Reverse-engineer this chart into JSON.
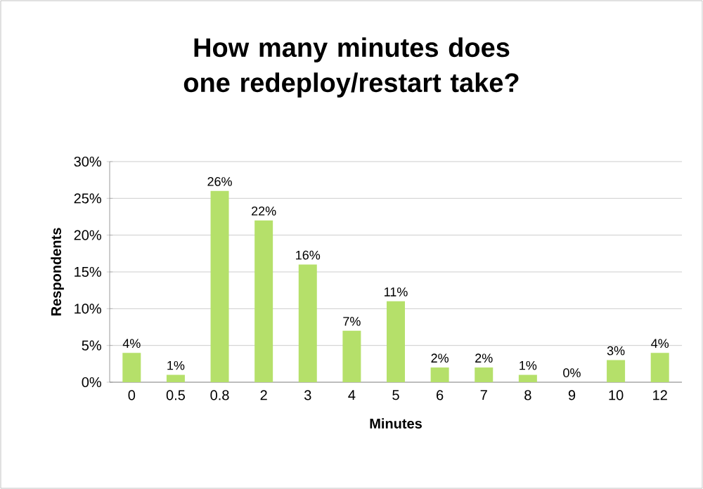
{
  "chart_data": {
    "type": "bar",
    "title": "How many minutes does one redeploy/restart take?",
    "xlabel": "Minutes",
    "ylabel": "Respondents",
    "categories": [
      "0",
      "0.5",
      "0.8",
      "2",
      "3",
      "4",
      "5",
      "6",
      "7",
      "8",
      "9",
      "10",
      "12"
    ],
    "values": [
      4,
      1,
      26,
      22,
      16,
      7,
      11,
      2,
      2,
      1,
      0,
      3,
      4
    ],
    "value_labels": [
      "4%",
      "1%",
      "26%",
      "22%",
      "16%",
      "7%",
      "11%",
      "2%",
      "2%",
      "1%",
      "0%",
      "3%",
      "4%"
    ],
    "color": "#b5e06a",
    "ylim": [
      0,
      30
    ],
    "yticks": [
      {
        "value": 0,
        "label": "0%"
      },
      {
        "value": 5,
        "label": "5%"
      },
      {
        "value": 10,
        "label": "10%"
      },
      {
        "value": 15,
        "label": "15%"
      },
      {
        "value": 20,
        "label": "20%"
      },
      {
        "value": 25,
        "label": "25%"
      },
      {
        "value": 30,
        "label": "30%"
      }
    ],
    "grid": "y"
  }
}
